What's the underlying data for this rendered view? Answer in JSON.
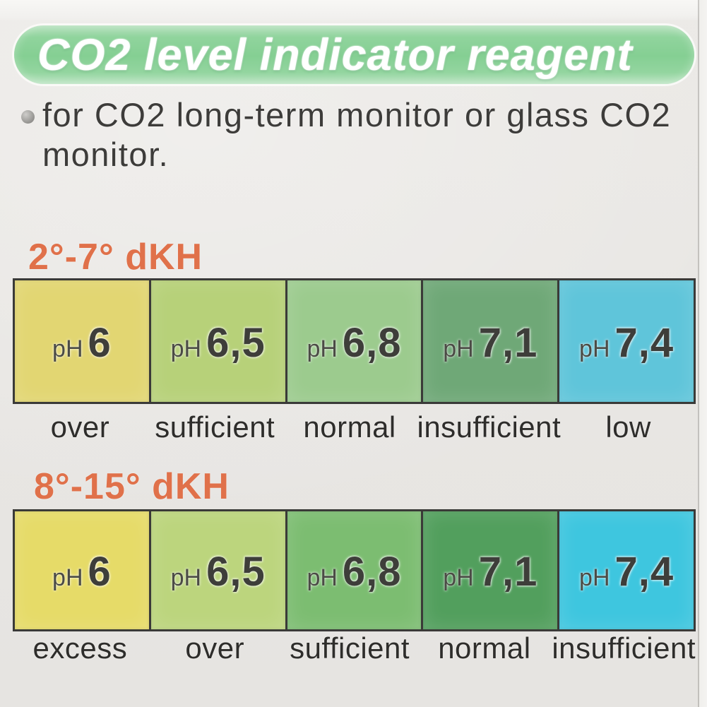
{
  "banner": {
    "title": "CO2 level indicator reagent"
  },
  "description": {
    "line1": "for CO2 long-term monitor or glass CO2",
    "line2": "monitor."
  },
  "sections": [
    {
      "heading": "2°-7° dKH",
      "cells": [
        {
          "ph_label": "pH",
          "value": "6",
          "status": "over",
          "color": "#e2d672"
        },
        {
          "ph_label": "pH",
          "value": "6,5",
          "status": "sufficient",
          "color": "#b7d179"
        },
        {
          "ph_label": "pH",
          "value": "6,8",
          "status": "normal",
          "color": "#9ccb8e"
        },
        {
          "ph_label": "pH",
          "value": "7,1",
          "status": "insufficient",
          "color": "#6fa877"
        },
        {
          "ph_label": "pH",
          "value": "7,4",
          "status": "low",
          "color": "#5fc5da"
        }
      ]
    },
    {
      "heading": "8°-15° dKH",
      "cells": [
        {
          "ph_label": "pH",
          "value": "6",
          "status": "excess",
          "color": "#e6db68"
        },
        {
          "ph_label": "pH",
          "value": "6,5",
          "status": "over",
          "color": "#bcd57d"
        },
        {
          "ph_label": "pH",
          "value": "6,8",
          "status": "sufficient",
          "color": "#7cbd71"
        },
        {
          "ph_label": "pH",
          "value": "7,1",
          "status": "normal",
          "color": "#529f5d"
        },
        {
          "ph_label": "pH",
          "value": "7,4",
          "status": "insufficient",
          "color": "#3ec6df"
        }
      ]
    }
  ],
  "chart_data": [
    {
      "type": "table",
      "title": "2°-7° dKH",
      "columns": [
        "pH",
        "CO2 level"
      ],
      "ph_values": [
        6,
        6.5,
        6.8,
        7.1,
        7.4
      ],
      "co2_levels": [
        "over",
        "sufficient",
        "normal",
        "insufficient",
        "low"
      ],
      "swatch_colors": [
        "#e2d672",
        "#b7d179",
        "#9ccb8e",
        "#6fa877",
        "#5fc5da"
      ]
    },
    {
      "type": "table",
      "title": "8°-15° dKH",
      "columns": [
        "pH",
        "CO2 level"
      ],
      "ph_values": [
        6,
        6.5,
        6.8,
        7.1,
        7.4
      ],
      "co2_levels": [
        "excess",
        "over",
        "sufficient",
        "normal",
        "insufficient"
      ],
      "swatch_colors": [
        "#e6db68",
        "#bcd57d",
        "#7cbd71",
        "#529f5d",
        "#3ec6df"
      ]
    }
  ],
  "colors": {
    "banner_green": "#85cf93",
    "heading_orange": "#e0714a",
    "body_text": "#3d3c3a",
    "swatch_border": "#3a3a38"
  }
}
